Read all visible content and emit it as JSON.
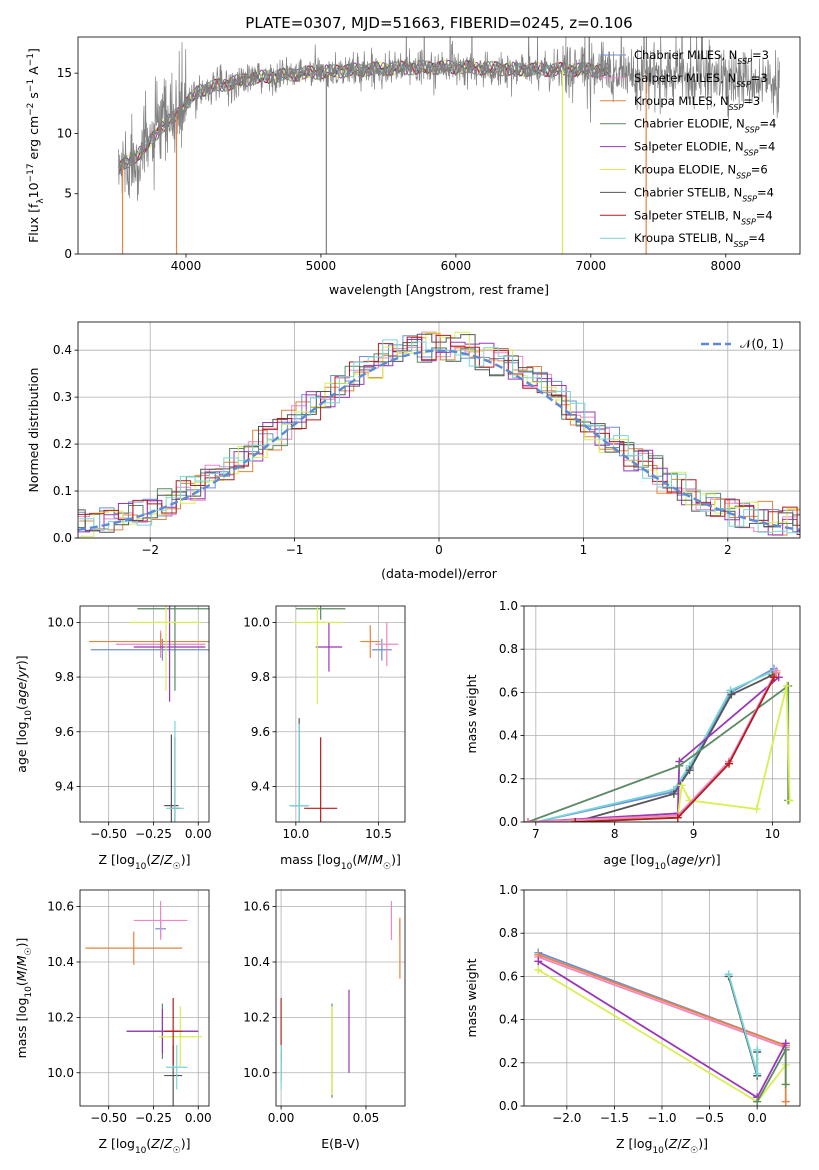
{
  "figure_title": "PLATE=0307, MJD=51663, FIBERID=0245, z=0.106",
  "colors": {
    "Chabrier MILES": "#6f8fd6",
    "Salpeter MILES": "#ee86c8",
    "Kroupa MILES": "#e8823e",
    "Chabrier ELODIE": "#5c8a66",
    "Salpeter ELODIE": "#9b36b8",
    "Kroupa ELODIE": "#d8ef52",
    "Chabrier STELIB": "#555555",
    "Salpeter STELIB": "#b51c1c",
    "Kroupa STELIB": "#78d6d9",
    "data": "#808080",
    "normal": "#5b8bd8"
  },
  "chart_data": [
    {
      "type": "line",
      "title": "PLATE=0307, MJD=51663, FIBERID=0245, z=0.106",
      "xlabel": "wavelength [Angstrom, rest frame]",
      "ylabel": "Flux [fλ10⁻¹⁷ erg cm⁻² s⁻¹ A⁻¹]",
      "xlim": [
        3200,
        8550
      ],
      "ylim": [
        0,
        18
      ],
      "xticks": [
        "4000",
        "5000",
        "6000",
        "7000",
        "8000"
      ],
      "yticks": [
        "0",
        "5",
        "10",
        "15"
      ],
      "grid": false,
      "legend_position": "right",
      "legend": [
        {
          "name": "Chabrier MILES",
          "label": "Chabrier MILES, N",
          "sub": "SSP",
          "suffix": "=3"
        },
        {
          "name": "Salpeter MILES",
          "label": "Salpeter MILES, N",
          "sub": "SSP",
          "suffix": "=3"
        },
        {
          "name": "Kroupa MILES",
          "label": "Kroupa MILES, N",
          "sub": "SSP",
          "suffix": "=3"
        },
        {
          "name": "Chabrier ELODIE",
          "label": "Chabrier ELODIE, N",
          "sub": "SSP",
          "suffix": "=4"
        },
        {
          "name": "Salpeter ELODIE",
          "label": "Salpeter ELODIE, N",
          "sub": "SSP",
          "suffix": "=4"
        },
        {
          "name": "Kroupa ELODIE",
          "label": "Kroupa ELODIE, N",
          "sub": "SSP",
          "suffix": "=6"
        },
        {
          "name": "Chabrier STELIB",
          "label": "Chabrier STELIB, N",
          "sub": "SSP",
          "suffix": "=4"
        },
        {
          "name": "Salpeter STELIB",
          "label": "Salpeter STELIB, N",
          "sub": "SSP",
          "suffix": "=4"
        },
        {
          "name": "Kroupa STELIB",
          "label": "Kroupa STELIB, N",
          "sub": "SSP",
          "suffix": "=4"
        }
      ],
      "spectrum": {
        "x_range": [
          3500,
          8400
        ],
        "continuum": [
          [
            3500,
            7.0
          ],
          [
            3700,
            8.8
          ],
          [
            3800,
            10.3
          ],
          [
            3950,
            11.8
          ],
          [
            4100,
            13.6
          ],
          [
            4500,
            14.6
          ],
          [
            5000,
            15.1
          ],
          [
            5500,
            15.4
          ],
          [
            6000,
            15.5
          ],
          [
            6500,
            15.3
          ],
          [
            7000,
            15.3
          ],
          [
            7500,
            14.8
          ],
          [
            8000,
            14.6
          ],
          [
            8400,
            14.3
          ]
        ],
        "model_gaps": [
          [
            7150,
            7400
          ],
          [
            7550,
            8400
          ]
        ],
        "dropouts": [
          {
            "x": 3930,
            "series": "Kroupa MILES"
          },
          {
            "x": 5040,
            "series": "data"
          },
          {
            "x": 6790,
            "series": "Kroupa ELODIE"
          },
          {
            "x": 7410,
            "series": "Kroupa MILES"
          },
          {
            "x": 3530,
            "series": "Kroupa MILES"
          }
        ]
      }
    },
    {
      "type": "line",
      "xlabel": "(data-model)/error",
      "ylabel": "Normed distribution",
      "xlim": [
        -2.5,
        2.5
      ],
      "ylim": [
        0,
        0.46
      ],
      "xticks": [
        "−2",
        "−1",
        "0",
        "1",
        "2"
      ],
      "yticks": [
        "0.0",
        "0.1",
        "0.2",
        "0.3",
        "0.4"
      ],
      "grid": true,
      "legend_position": "upper right",
      "legend": [
        "𝒩(0, 1)"
      ],
      "bin_width": 0.1,
      "normal_curve": {
        "mu": 0,
        "sigma": 1
      }
    },
    {
      "type": "scatter",
      "xlabel": "Z [log10(Z/Z☉)]",
      "ylabel": "age [log10(age/yr)]",
      "xlim": [
        -0.66,
        0.06
      ],
      "ylim": [
        9.27,
        10.06
      ],
      "xticks": [
        "−0.50",
        "−0.25",
        "0.00"
      ],
      "yticks": [
        "9.4",
        "9.6",
        "9.8",
        "10.0"
      ],
      "grid": true,
      "points": [
        {
          "series": "Chabrier MILES",
          "x": -0.2,
          "y": 9.9,
          "xerr": 0.4,
          "yerr": 0.04
        },
        {
          "series": "Salpeter MILES",
          "x": -0.21,
          "y": 9.92,
          "xerr": 0.25,
          "yerr": 0.05
        },
        {
          "series": "Kroupa MILES",
          "x": -0.21,
          "y": 9.93,
          "xerr": 0.4,
          "yerr": 0.03
        },
        {
          "series": "Chabrier ELODIE",
          "x": -0.13,
          "y": 10.05,
          "xerr": 0.21,
          "yerr": 0.3
        },
        {
          "series": "Salpeter ELODIE",
          "x": -0.16,
          "y": 9.91,
          "xerr": 0.2,
          "yerr": 0.2
        },
        {
          "series": "Kroupa ELODIE",
          "x": -0.18,
          "y": 10.0,
          "xerr": 0.2,
          "yerr": 0.25
        },
        {
          "series": "Chabrier STELIB",
          "x": -0.15,
          "y": 9.33,
          "xerr": 0.04,
          "yerr": 0.26
        },
        {
          "series": "Salpeter STELIB",
          "x": -0.13,
          "y": 9.32,
          "xerr": 0.03,
          "yerr": 0.26
        },
        {
          "series": "Kroupa STELIB",
          "x": -0.13,
          "y": 9.32,
          "xerr": 0.05,
          "yerr": 0.32
        }
      ]
    },
    {
      "type": "scatter",
      "xlabel": "mass [log10(M/M☉)]",
      "ylabel": "",
      "xlim": [
        9.88,
        10.66
      ],
      "ylim": [
        9.27,
        10.06
      ],
      "xticks": [
        "10.0",
        "10.5"
      ],
      "yticks": [
        "9.4",
        "9.6",
        "9.8",
        "10.0"
      ],
      "grid": true,
      "points": [
        {
          "series": "Chabrier MILES",
          "x": 10.52,
          "y": 9.9,
          "xerr": 0.06,
          "yerr": 0.04
        },
        {
          "series": "Salpeter MILES",
          "x": 10.55,
          "y": 9.92,
          "xerr": 0.07,
          "yerr": 0.08
        },
        {
          "series": "Kroupa MILES",
          "x": 10.45,
          "y": 9.93,
          "xerr": 0.06,
          "yerr": 0.06
        },
        {
          "series": "Chabrier ELODIE",
          "x": 10.15,
          "y": 10.05,
          "xerr": 0.15,
          "yerr": 0.04
        },
        {
          "series": "Salpeter ELODIE",
          "x": 10.2,
          "y": 9.91,
          "xerr": 0.08,
          "yerr": 0.09
        },
        {
          "series": "Kroupa ELODIE",
          "x": 10.13,
          "y": 10.0,
          "xerr": 0.15,
          "yerr": 0.3
        },
        {
          "series": "Chabrier STELIB",
          "x": 10.02,
          "y": 9.33,
          "xerr": 0.05,
          "yerr": 0.32
        },
        {
          "series": "Salpeter STELIB",
          "x": 10.15,
          "y": 9.32,
          "xerr": 0.1,
          "yerr": 0.26
        },
        {
          "series": "Kroupa STELIB",
          "x": 10.02,
          "y": 9.33,
          "xerr": 0.06,
          "yerr": 0.3
        }
      ]
    },
    {
      "type": "line",
      "xlabel": "age [log10(age/yr)]",
      "ylabel": "mass weight",
      "xlim": [
        6.85,
        10.35
      ],
      "ylim": [
        0,
        1.0
      ],
      "xticks": [
        "7",
        "8",
        "9",
        "10"
      ],
      "yticks": [
        "0.0",
        "0.2",
        "0.4",
        "0.6",
        "0.8",
        "1.0"
      ],
      "grid": true,
      "series": [
        {
          "name": "Chabrier MILES",
          "x": [
            7.0,
            8.75,
            8.95,
            9.47,
            10.02
          ],
          "y": [
            0.0,
            0.14,
            0.25,
            0.6,
            0.71
          ]
        },
        {
          "name": "Kroupa STELIB",
          "x": [
            7.0,
            8.75,
            8.95,
            9.47,
            10.02
          ],
          "y": [
            0.0,
            0.15,
            0.26,
            0.61,
            0.7
          ]
        },
        {
          "name": "Chabrier STELIB",
          "x": [
            7.5,
            8.75,
            8.95,
            9.48,
            10.0
          ],
          "y": [
            0.0,
            0.13,
            0.24,
            0.59,
            0.68
          ]
        },
        {
          "name": "Salpeter ELODIE",
          "x": [
            6.9,
            8.8,
            8.82,
            10.08
          ],
          "y": [
            0.0,
            0.04,
            0.28,
            0.67
          ]
        },
        {
          "name": "Chabrier ELODIE",
          "x": [
            6.9,
            8.82,
            10.2,
            10.2
          ],
          "y": [
            0.0,
            0.26,
            0.63,
            0.1
          ]
        },
        {
          "name": "Kroupa ELODIE",
          "x": [
            6.9,
            8.8,
            8.85,
            8.95,
            9.8,
            10.18,
            10.22
          ],
          "y": [
            0.0,
            0.02,
            0.17,
            0.1,
            0.06,
            0.63,
            0.1
          ]
        },
        {
          "name": "Kroupa MILES",
          "x": [
            6.9,
            8.8,
            9.45,
            10.05
          ],
          "y": [
            0.0,
            0.03,
            0.28,
            0.69
          ]
        },
        {
          "name": "Salpeter MILES",
          "x": [
            6.9,
            8.8,
            9.45,
            10.05
          ],
          "y": [
            0.0,
            0.03,
            0.28,
            0.7
          ]
        },
        {
          "name": "Salpeter STELIB",
          "x": [
            7.5,
            8.8,
            9.45,
            10.02
          ],
          "y": [
            0.0,
            0.02,
            0.27,
            0.67
          ]
        }
      ]
    },
    {
      "type": "scatter",
      "xlabel": "Z [log10(Z/Z☉)]",
      "ylabel": "mass [log10(M/M☉)]",
      "xlim": [
        -0.66,
        0.06
      ],
      "ylim": [
        9.88,
        10.66
      ],
      "xticks": [
        "−0.50",
        "−0.25",
        "0.00"
      ],
      "yticks": [
        "10.0",
        "10.2",
        "10.4",
        "10.6"
      ],
      "grid": true,
      "points": [
        {
          "series": "Chabrier MILES",
          "x": -0.21,
          "y": 10.52,
          "xerr": 0.03,
          "yerr": 0.03
        },
        {
          "series": "Salpeter MILES",
          "x": -0.21,
          "y": 10.55,
          "xerr": 0.15,
          "yerr": 0.07
        },
        {
          "series": "Kroupa MILES",
          "x": -0.36,
          "y": 10.45,
          "xerr": 0.27,
          "yerr": 0.06
        },
        {
          "series": "Chabrier ELODIE",
          "x": -0.2,
          "y": 10.15,
          "xerr": 0.2,
          "yerr": 0.1
        },
        {
          "series": "Salpeter ELODIE",
          "x": -0.2,
          "y": 10.15,
          "xerr": 0.2,
          "yerr": 0.08
        },
        {
          "series": "Kroupa ELODIE",
          "x": -0.1,
          "y": 10.13,
          "xerr": 0.12,
          "yerr": 0.11
        },
        {
          "series": "Chabrier STELIB",
          "x": -0.14,
          "y": 9.99,
          "xerr": 0.05,
          "yerr": 0.11
        },
        {
          "series": "Salpeter STELIB",
          "x": -0.14,
          "y": 10.15,
          "xerr": 0.05,
          "yerr": 0.12
        },
        {
          "series": "Kroupa STELIB",
          "x": -0.12,
          "y": 10.02,
          "xerr": 0.06,
          "yerr": 0.08
        }
      ]
    },
    {
      "type": "scatter",
      "xlabel": "E(B-V)",
      "ylabel": "",
      "xlim": [
        -0.003,
        0.073
      ],
      "ylim": [
        9.88,
        10.66
      ],
      "xticks": [
        "0.00",
        "0.05"
      ],
      "yticks": [
        "10.0",
        "10.2",
        "10.4",
        "10.6"
      ],
      "grid": true,
      "points": [
        {
          "series": "Chabrier MILES",
          "x": 0.07,
          "y": 10.52,
          "yerr": 0.03
        },
        {
          "series": "Salpeter MILES",
          "x": 0.065,
          "y": 10.55,
          "yerr": 0.07
        },
        {
          "series": "Kroupa MILES",
          "x": 0.07,
          "y": 10.45,
          "yerr": 0.11
        },
        {
          "series": "Chabrier ELODIE",
          "x": 0.03,
          "y": 10.08,
          "yerr": 0.17
        },
        {
          "series": "Salpeter ELODIE",
          "x": 0.04,
          "y": 10.15,
          "yerr": 0.15
        },
        {
          "series": "Kroupa ELODIE",
          "x": 0.03,
          "y": 10.08,
          "yerr": 0.16
        },
        {
          "series": "Chabrier STELIB",
          "x": 0.0,
          "y": 10.02,
          "yerr": 0.05
        },
        {
          "series": "Salpeter STELIB",
          "x": 0.0,
          "y": 10.16,
          "yerr": 0.11
        },
        {
          "series": "Kroupa STELIB",
          "x": 0.0,
          "y": 10.02,
          "yerr": 0.08
        }
      ]
    },
    {
      "type": "line",
      "xlabel": "Z [log10(Z/Z☉)]",
      "ylabel": "mass weight",
      "xlim": [
        -2.45,
        0.45
      ],
      "ylim": [
        0,
        1.0
      ],
      "xticks": [
        "−2.0",
        "−1.5",
        "−1.0",
        "−0.5",
        "0.0"
      ],
      "yticks": [
        "0.0",
        "0.2",
        "0.4",
        "0.6",
        "0.8",
        "1.0"
      ],
      "grid": true,
      "series": [
        {
          "name": "Chabrier MILES",
          "x": [
            -2.3,
            0.3
          ],
          "y": [
            0.71,
            0.28
          ]
        },
        {
          "name": "Salpeter MILES",
          "x": [
            -2.3,
            0.3
          ],
          "y": [
            0.69,
            0.27
          ]
        },
        {
          "name": "Kroupa MILES",
          "x": [
            -2.3,
            0.3,
            0.3
          ],
          "y": [
            0.7,
            0.28,
            0.02
          ]
        },
        {
          "name": "Salpeter ELODIE",
          "x": [
            -2.3,
            0.0,
            0.3
          ],
          "y": [
            0.67,
            0.04,
            0.29
          ]
        },
        {
          "name": "Kroupa ELODIE",
          "x": [
            -2.3,
            0.0,
            0.3,
            0.3
          ],
          "y": [
            0.63,
            0.02,
            0.19,
            0.1
          ]
        },
        {
          "name": "Chabrier ELODIE",
          "x": [
            0.0,
            0.3,
            0.3
          ],
          "y": [
            0.02,
            0.26,
            0.1
          ]
        },
        {
          "name": "Chabrier STELIB",
          "x": [
            -0.3,
            0.0,
            0.0
          ],
          "y": [
            0.6,
            0.14,
            0.25
          ]
        },
        {
          "name": "Kroupa STELIB",
          "x": [
            -0.3,
            0.0,
            0.0
          ],
          "y": [
            0.61,
            0.15,
            0.26
          ]
        }
      ]
    }
  ]
}
